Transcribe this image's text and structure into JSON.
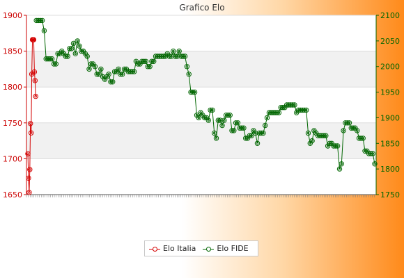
{
  "chart_data": {
    "type": "line",
    "title": "Grafico Elo",
    "left_axis": {
      "min": 1650,
      "max": 1900,
      "step": 50,
      "ticks": [
        "1650",
        "1700",
        "1750",
        "1800",
        "1850",
        "1900"
      ],
      "color": "#cc0000"
    },
    "right_axis": {
      "min": 1750,
      "max": 2100,
      "step": 50,
      "ticks": [
        "1750",
        "1800",
        "1850",
        "1900",
        "1950",
        "2000",
        "2050",
        "2100"
      ],
      "color": "#006600"
    },
    "grid": true,
    "legend_position": "bottom-center",
    "series": [
      {
        "name": "Elo Italia",
        "axis": "left",
        "color": "#d40000",
        "values": [
          1707,
          1673,
          1653,
          1685,
          1749,
          1736,
          1818,
          1866,
          1866,
          1866,
          1821,
          1809,
          1787
        ]
      },
      {
        "name": "Elo FIDE",
        "axis": "right",
        "color": "#006600",
        "values": [
          2090,
          2090,
          2090,
          2090,
          2070,
          2015,
          2015,
          2015,
          2015,
          2005,
          2005,
          2025,
          2025,
          2030,
          2025,
          2020,
          2020,
          2035,
          2035,
          2045,
          2025,
          2050,
          2040,
          2030,
          2030,
          2025,
          2020,
          1995,
          2005,
          2005,
          2000,
          1985,
          1985,
          1995,
          1980,
          1975,
          1980,
          1985,
          1970,
          1970,
          1990,
          1990,
          1995,
          1985,
          1985,
          1995,
          1995,
          1990,
          1990,
          1990,
          1990,
          2010,
          2005,
          2005,
          2010,
          2010,
          2010,
          2000,
          2000,
          2010,
          2010,
          2020,
          2020,
          2020,
          2020,
          2020,
          2020,
          2025,
          2020,
          2020,
          2030,
          2020,
          2020,
          2030,
          2020,
          2020,
          2020,
          2000,
          1985,
          1950,
          1950,
          1950,
          1905,
          1900,
          1910,
          1905,
          1900,
          1900,
          1895,
          1915,
          1915,
          1870,
          1860,
          1895,
          1895,
          1885,
          1895,
          1905,
          1905,
          1905,
          1875,
          1875,
          1890,
          1890,
          1880,
          1880,
          1880,
          1860,
          1860,
          1865,
          1865,
          1875,
          1870,
          1850,
          1870,
          1870,
          1870,
          1885,
          1900,
          1910,
          1910,
          1910,
          1910,
          1910,
          1910,
          1920,
          1920,
          1920,
          1925,
          1925,
          1925,
          1925,
          1925,
          1910,
          1915,
          1915,
          1915,
          1915,
          1915,
          1870,
          1850,
          1855,
          1875,
          1870,
          1865,
          1865,
          1865,
          1865,
          1865,
          1845,
          1850,
          1850,
          1845,
          1845,
          1845,
          1800,
          1810,
          1875,
          1890,
          1890,
          1890,
          1880,
          1880,
          1880,
          1875,
          1860,
          1860,
          1860,
          1835,
          1835,
          1830,
          1830,
          1830,
          1810
        ]
      }
    ]
  }
}
